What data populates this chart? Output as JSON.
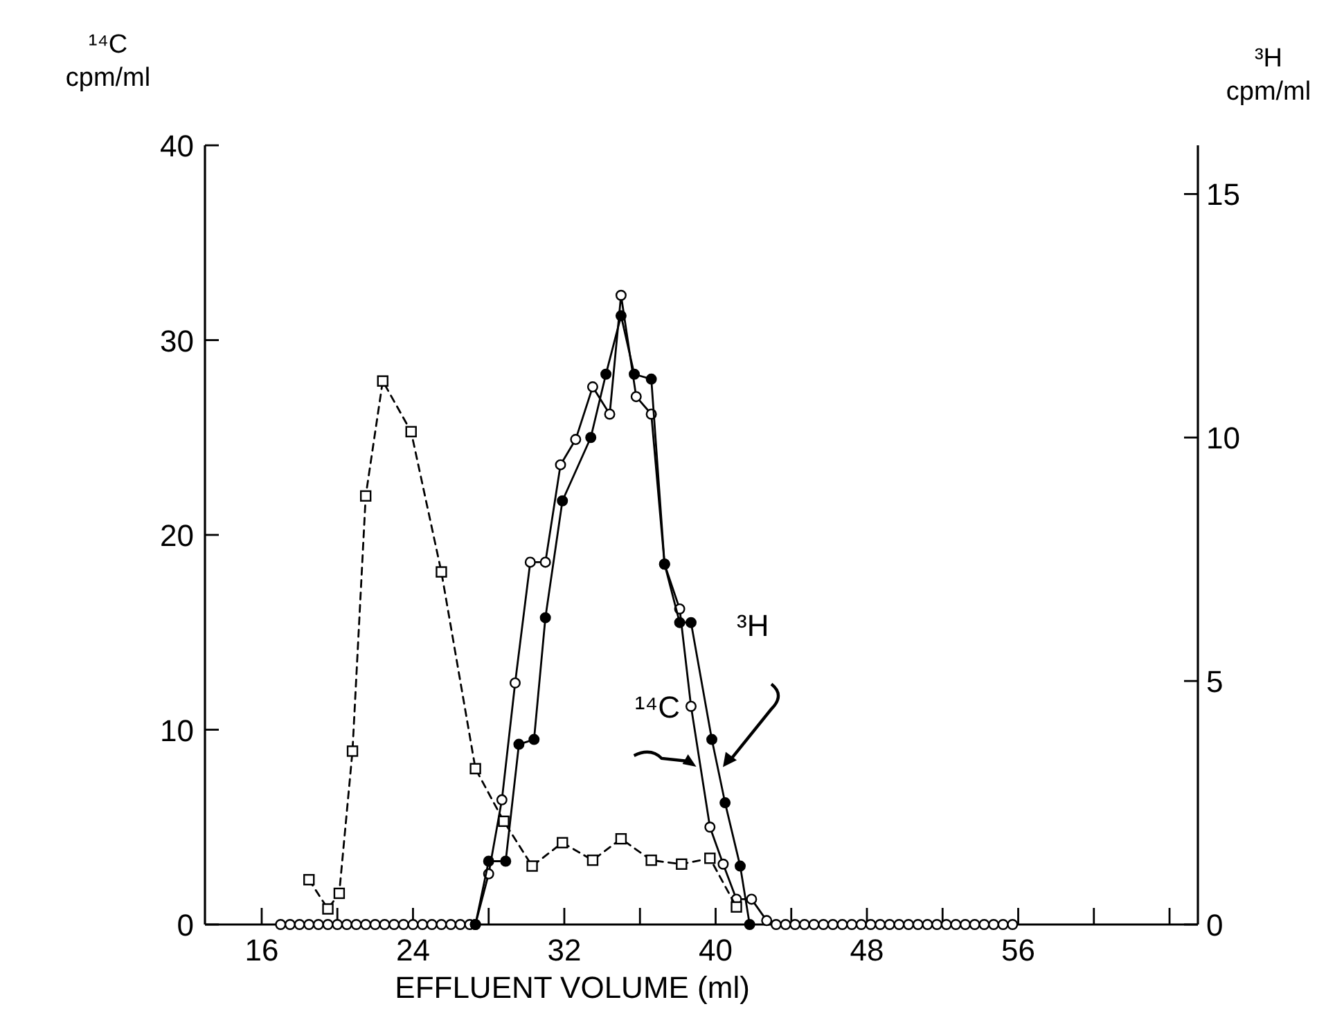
{
  "chart_data": {
    "type": "line",
    "xlabel": "EFFLUENT VOLUME (ml)",
    "ylabel": "¹⁴C cpm/ml",
    "y2label": "³H cpm/ml",
    "xlim": [
      13,
      65.5
    ],
    "xticks": [
      16,
      {
        "value": 20,
        "label": null
      },
      24,
      {
        "value": 28,
        "label": null
      },
      32,
      {
        "value": 36,
        "label": null
      },
      40,
      {
        "value": 44,
        "label": null
      },
      48,
      {
        "value": 52,
        "label": null
      },
      56,
      {
        "value": 60,
        "label": null
      },
      {
        "value": 64,
        "label": null
      }
    ],
    "ylim": [
      0,
      40
    ],
    "yticks": [
      0,
      10,
      20,
      30,
      40
    ],
    "y2lim": [
      0,
      16
    ],
    "y2ticks": [
      0,
      5,
      10,
      15
    ],
    "grid": false,
    "series": [
      {
        "name": "¹⁴C",
        "color": "#000000",
        "marker": "circle",
        "line_style": "solid",
        "axis": "y",
        "x": [
          17,
          17.5,
          18,
          18.5,
          19,
          19.5,
          20,
          20.5,
          21,
          21.5,
          22,
          22.5,
          23,
          23.5,
          24,
          24.5,
          25,
          25.5,
          26,
          26.5,
          27,
          27.3,
          28.0,
          28.7,
          29.4,
          30.2,
          31.0,
          31.8,
          32.6,
          33.5,
          34.4,
          35.0,
          35.8,
          36.6,
          37.3,
          38.1,
          38.7,
          39.7,
          40.4,
          41.1,
          41.9,
          42.7,
          43.2,
          43.7,
          44.2,
          44.7,
          45.2,
          45.7,
          46.2,
          46.7,
          47.2,
          47.7,
          48.2,
          48.7,
          49.2,
          49.7,
          50.2,
          50.7,
          51.2,
          51.7,
          52.2,
          52.7,
          53.2,
          53.7,
          54.2,
          54.7,
          55.2,
          55.7
        ],
        "values": [
          0,
          0,
          0,
          0,
          0,
          0,
          0,
          0,
          0,
          0,
          0,
          0,
          0,
          0,
          0,
          0,
          0,
          0,
          0,
          0,
          0,
          0,
          2.6,
          6.4,
          12.4,
          18.6,
          18.6,
          23.6,
          24.9,
          27.6,
          26.2,
          32.3,
          27.1,
          26.2,
          18.5,
          16.2,
          11.2,
          5.0,
          3.1,
          1.3,
          1.3,
          0.2,
          0,
          0,
          0,
          0,
          0,
          0,
          0,
          0,
          0,
          0,
          0,
          0,
          0,
          0,
          0,
          0,
          0,
          0,
          0,
          0,
          0,
          0,
          0,
          0,
          0,
          0
        ]
      },
      {
        "name": "³H",
        "color": "#000000",
        "marker": "circle",
        "line_style": "solid",
        "axis": "y2",
        "x": [
          27.3,
          28.0,
          28.9,
          29.6,
          30.4,
          31.0,
          31.9,
          33.4,
          34.2,
          35.0,
          35.7,
          36.6,
          37.3,
          38.1,
          38.7,
          39.8,
          40.5,
          41.3,
          41.8
        ],
        "values": [
          0,
          1.3,
          1.3,
          3.7,
          3.8,
          6.3,
          8.7,
          10.0,
          11.3,
          12.5,
          11.3,
          11.2,
          7.4,
          6.2,
          6.2,
          3.8,
          2.5,
          1.2,
          0
        ]
      },
      {
        "color": "#000000",
        "marker": "square",
        "line_style": "dashed",
        "axis": "y",
        "x": [
          18.5,
          19.5,
          20.1,
          20.8,
          21.5,
          22.4,
          23.9,
          25.5,
          27.3,
          28.8,
          30.3,
          31.9,
          33.5,
          35.0,
          36.6,
          38.2,
          39.7,
          41.1
        ],
        "values": [
          2.3,
          0.8,
          1.6,
          8.9,
          22.0,
          27.9,
          25.3,
          18.1,
          8.0,
          5.3,
          3.0,
          4.2,
          3.3,
          4.4,
          3.3,
          3.1,
          3.4,
          0.9
        ]
      }
    ]
  }
}
